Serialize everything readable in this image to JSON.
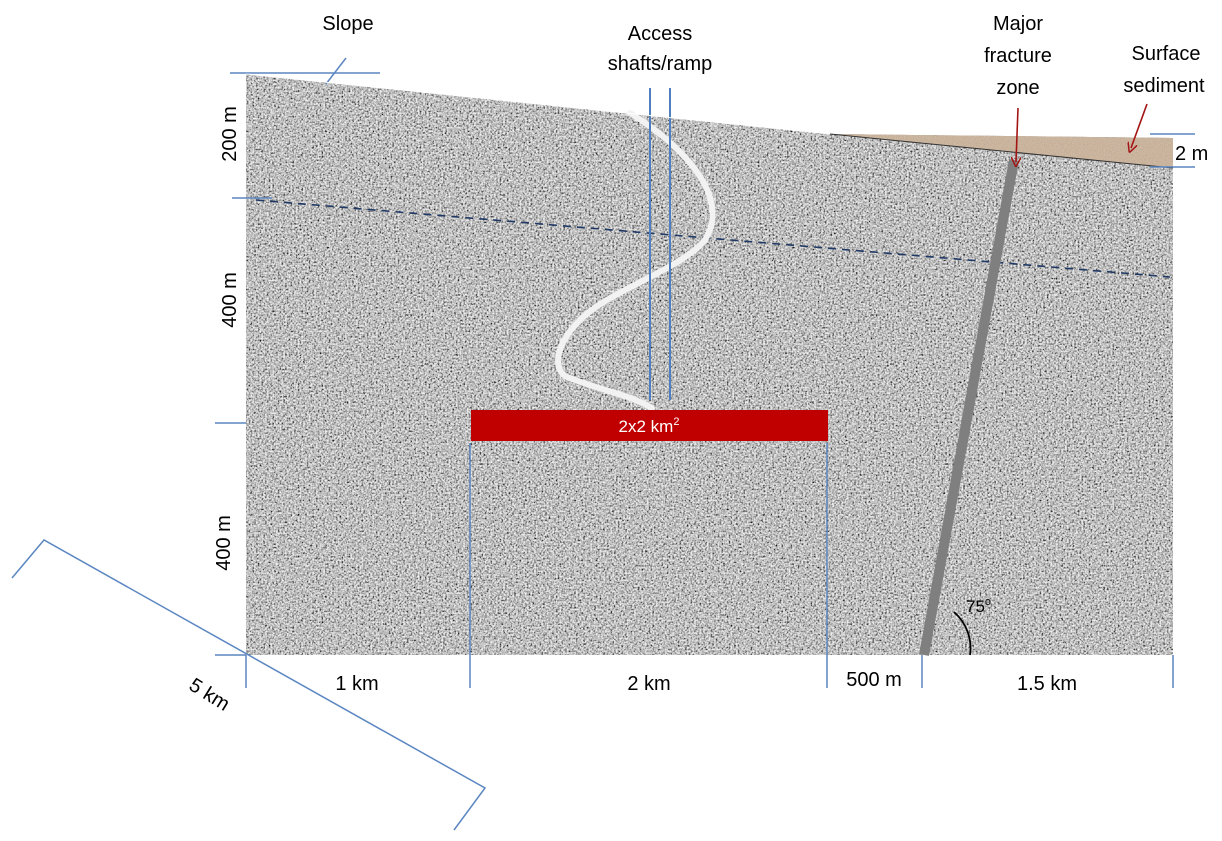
{
  "labels": {
    "slope": "Slope",
    "access_line1": "Access",
    "access_line2": "shafts/ramp",
    "fracture_line1": "Major",
    "fracture_line2": "fracture",
    "fracture_line3": "zone",
    "sediment_line1": "Surface",
    "sediment_line2": "sediment",
    "sediment_thickness": "2 m",
    "depth_top": "200 m",
    "depth_mid": "400 m",
    "depth_bottom": "400 m",
    "repository_area": "2x2 km",
    "repository_area_exp": "2",
    "angle": "75",
    "angle_unit": "o",
    "width_1": "1 km",
    "width_2": "2 km",
    "width_3": "500 m",
    "width_4": "1.5 km",
    "depth_extent": "5 km"
  },
  "colors": {
    "rock": "#a9a9a9",
    "sediment": "#b59b86",
    "repository": "#c00000",
    "dimension_lines": "#5b86c1",
    "fracture": "#7f7f7f",
    "dashed_line": "#1f3864",
    "arrow": "#a31515"
  },
  "icons": {
    "fracture_arrow": "arrow-down",
    "sediment_arrow": "arrow-down-left"
  }
}
